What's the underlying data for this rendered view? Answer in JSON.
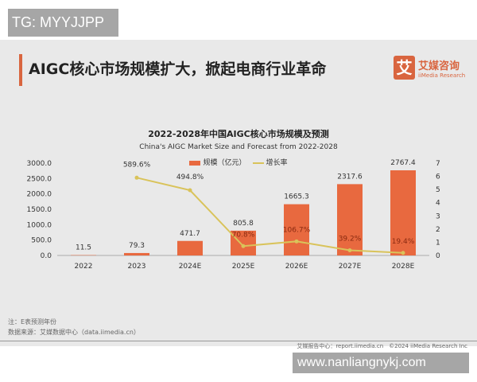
{
  "watermark_top": "TG: MYYJJPP",
  "watermark_bottom": "www.nanliangnykj.com",
  "headline": "AIGC核心市场规模扩大，掀起电商行业革命",
  "logo": {
    "mark": "艾",
    "cn": "艾媒咨询",
    "en": "iiMedia Research"
  },
  "notes": [
    "注：E表预测年份",
    "数据来源：艾媒数据中心（data.iimedia.cn）"
  ],
  "footer": "艾媒报告中心：report.iimedia.cn　©2024 iiMedia Research Inc",
  "colors": {
    "bar": "#e8693f",
    "line": "#d9c35a",
    "accent": "#d9653f"
  },
  "chart_data": {
    "type": "bar+line",
    "title": "2022-2028年中国AIGC核心市场规模及预测",
    "subtitle": "China's AIGC Market Size and Forecast from 2022-2028",
    "categories": [
      "2022",
      "2023",
      "2024E",
      "2025E",
      "2026E",
      "2027E",
      "2028E"
    ],
    "series": [
      {
        "name": "规模（亿元）",
        "type": "bar",
        "axis": "left",
        "values": [
          11.5,
          79.3,
          471.7,
          805.8,
          1665.3,
          2317.6,
          2767.4
        ],
        "labels": [
          "11.5",
          "79.3",
          "471.7",
          "805.8",
          "1665.3",
          "2317.6",
          "2767.4"
        ]
      },
      {
        "name": "增长率",
        "type": "line",
        "axis": "right",
        "values": [
          null,
          5.896,
          4.948,
          0.708,
          1.067,
          0.392,
          0.194
        ],
        "labels": [
          "",
          "589.6%",
          "494.8%",
          "70.8%",
          "106.7%",
          "39.2%",
          "19.4%"
        ]
      }
    ],
    "y_left": {
      "min": 0,
      "max": 3000,
      "ticks": [
        "0.0",
        "500.0",
        "1000.0",
        "1500.0",
        "2000.0",
        "2500.0",
        "3000.0"
      ]
    },
    "y_right": {
      "min": 0,
      "max": 7,
      "ticks": [
        "0",
        "1",
        "2",
        "3",
        "4",
        "5",
        "6",
        "7"
      ]
    },
    "legend": "top",
    "grid": false
  }
}
